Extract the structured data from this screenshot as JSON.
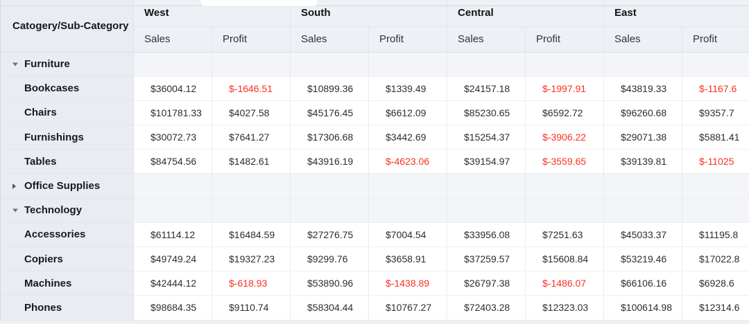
{
  "colors": {
    "negative_value": "#fb2f21",
    "header_background": "#edf0f4",
    "row_header_background": "#e9edf3",
    "category_row_background": "#f3f5f8"
  },
  "table": {
    "corner_header": "Catogery/Sub-Category",
    "regions": [
      "West",
      "South",
      "Central",
      "East"
    ],
    "measures": [
      "Sales",
      "Profit"
    ],
    "rows": [
      {
        "label": "Furniture",
        "type": "category",
        "state": "expanded",
        "cells": []
      },
      {
        "label": "Bookcases",
        "type": "sub",
        "cells": [
          {
            "text": "$36004.12"
          },
          {
            "text": "$-1646.51",
            "neg": true
          },
          {
            "text": "$10899.36"
          },
          {
            "text": "$1339.49"
          },
          {
            "text": "$24157.18"
          },
          {
            "text": "$-1997.91",
            "neg": true
          },
          {
            "text": "$43819.33"
          },
          {
            "text": "$-1167.6",
            "neg": true
          }
        ]
      },
      {
        "label": "Chairs",
        "type": "sub",
        "cells": [
          {
            "text": "$101781.33"
          },
          {
            "text": "$4027.58"
          },
          {
            "text": "$45176.45"
          },
          {
            "text": "$6612.09"
          },
          {
            "text": "$85230.65"
          },
          {
            "text": "$6592.72"
          },
          {
            "text": "$96260.68"
          },
          {
            "text": "$9357.7"
          }
        ]
      },
      {
        "label": "Furnishings",
        "type": "sub",
        "cells": [
          {
            "text": "$30072.73"
          },
          {
            "text": "$7641.27"
          },
          {
            "text": "$17306.68"
          },
          {
            "text": "$3442.69"
          },
          {
            "text": "$15254.37"
          },
          {
            "text": "$-3906.22",
            "neg": true
          },
          {
            "text": "$29071.38"
          },
          {
            "text": "$5881.41"
          }
        ]
      },
      {
        "label": "Tables",
        "type": "sub",
        "cells": [
          {
            "text": "$84754.56"
          },
          {
            "text": "$1482.61"
          },
          {
            "text": "$43916.19"
          },
          {
            "text": "$-4623.06",
            "neg": true
          },
          {
            "text": "$39154.97"
          },
          {
            "text": "$-3559.65",
            "neg": true
          },
          {
            "text": "$39139.81"
          },
          {
            "text": "$-11025",
            "neg": true
          }
        ]
      },
      {
        "label": "Office Supplies",
        "type": "category",
        "state": "collapsed",
        "cells": []
      },
      {
        "label": "Technology",
        "type": "category",
        "state": "expanded",
        "cells": []
      },
      {
        "label": "Accessories",
        "type": "sub",
        "cells": [
          {
            "text": "$61114.12"
          },
          {
            "text": "$16484.59"
          },
          {
            "text": "$27276.75"
          },
          {
            "text": "$7004.54"
          },
          {
            "text": "$33956.08"
          },
          {
            "text": "$7251.63"
          },
          {
            "text": "$45033.37"
          },
          {
            "text": "$11195.8"
          }
        ]
      },
      {
        "label": "Copiers",
        "type": "sub",
        "cells": [
          {
            "text": "$49749.24"
          },
          {
            "text": "$19327.23"
          },
          {
            "text": "$9299.76"
          },
          {
            "text": "$3658.91"
          },
          {
            "text": "$37259.57"
          },
          {
            "text": "$15608.84"
          },
          {
            "text": "$53219.46"
          },
          {
            "text": "$17022.8"
          }
        ]
      },
      {
        "label": "Machines",
        "type": "sub",
        "cells": [
          {
            "text": "$42444.12"
          },
          {
            "text": "$-618.93",
            "neg": true
          },
          {
            "text": "$53890.96"
          },
          {
            "text": "$-1438.89",
            "neg": true
          },
          {
            "text": "$26797.38"
          },
          {
            "text": "$-1486.07",
            "neg": true
          },
          {
            "text": "$66106.16"
          },
          {
            "text": "$6928.6"
          }
        ]
      },
      {
        "label": "Phones",
        "type": "sub",
        "cells": [
          {
            "text": "$98684.35"
          },
          {
            "text": "$9110.74"
          },
          {
            "text": "$58304.44"
          },
          {
            "text": "$10767.27"
          },
          {
            "text": "$72403.28"
          },
          {
            "text": "$12323.03"
          },
          {
            "text": "$100614.98"
          },
          {
            "text": "$12314.6"
          }
        ]
      }
    ]
  }
}
